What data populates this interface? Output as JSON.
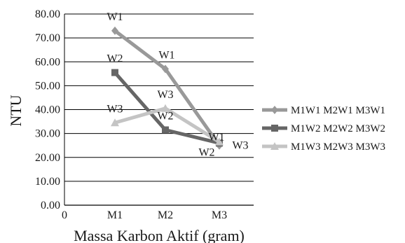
{
  "chart_data": {
    "type": "line",
    "xlabel": "Massa Karbon Aktif (gram)",
    "ylabel": "NTU",
    "origin_label": "0",
    "categories": [
      "M1",
      "M2",
      "M3"
    ],
    "ylim": [
      0,
      80
    ],
    "yticks": [
      "0.00",
      "10.00",
      "20.00",
      "30.00",
      "40.00",
      "50.00",
      "60.00",
      "70.00",
      "80.00"
    ],
    "grid": true,
    "legend_position": "right",
    "series": [
      {
        "name": "M1W1 M2W1 M3W1",
        "values": [
          73,
          57,
          25
        ],
        "color": "#999999",
        "marker": "diamond",
        "point_labels": [
          "W1",
          "W1",
          "W1"
        ]
      },
      {
        "name": "M1W2 M2W2 M3W2",
        "values": [
          55.5,
          31.5,
          26
        ],
        "color": "#666666",
        "marker": "square",
        "point_labels": [
          "W2",
          "W2",
          "W2"
        ]
      },
      {
        "name": "M1W3 M2W3 M3W3",
        "values": [
          34.5,
          40.5,
          26.5
        ],
        "color": "#c4c4c4",
        "marker": "triangle",
        "point_labels": [
          "W3",
          "W3",
          "W3"
        ]
      }
    ]
  }
}
